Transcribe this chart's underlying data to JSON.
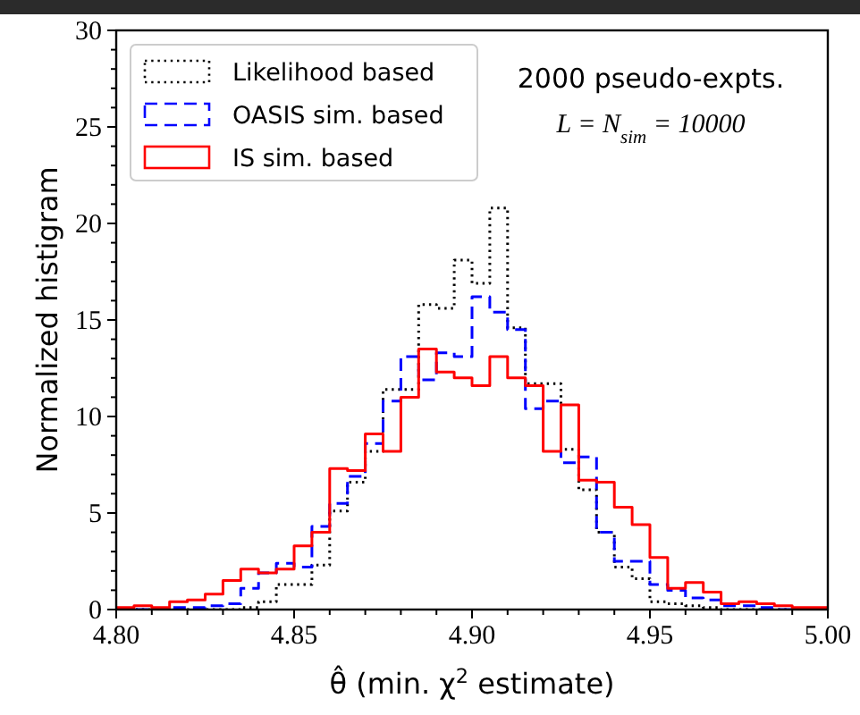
{
  "chart_data": {
    "type": "histogram",
    "xlabel": "θ̂ (min. χ$^{2}$ estimate)",
    "ylabel": "Normalized histigram",
    "annotations": [
      "2000 pseudo-expts.",
      "L = N$_{sim}$ = 10000"
    ],
    "bins": [
      4.8,
      4.805,
      4.81,
      4.815,
      4.82,
      4.825,
      4.83,
      4.835,
      4.84,
      4.845,
      4.85,
      4.855,
      4.86,
      4.865,
      4.87,
      4.875,
      4.88,
      4.885,
      4.89,
      4.895,
      4.9,
      4.905,
      4.91,
      4.915,
      4.92,
      4.925,
      4.93,
      4.935,
      4.94,
      4.945,
      4.95,
      4.955,
      4.96,
      4.965,
      4.97,
      4.975,
      4.98,
      4.985,
      4.99,
      4.995,
      5.0
    ],
    "series": [
      {
        "name": "Likelihood based",
        "color": "#000000",
        "line_style": "dotted",
        "values": [
          0,
          0,
          0,
          0,
          0,
          0,
          0,
          0.1,
          0.4,
          1.3,
          1.3,
          2.3,
          5.1,
          6.6,
          8.2,
          11.4,
          11.4,
          15.8,
          15.6,
          18.1,
          16.9,
          20.8,
          14.6,
          11.7,
          11.7,
          8.3,
          6.2,
          4.0,
          2.2,
          1.6,
          0.4,
          0.3,
          0.2,
          0.1,
          0,
          0,
          0,
          0,
          0,
          0
        ]
      },
      {
        "name": "OASIS sim. based",
        "color": "#0000ff",
        "line_style": "dashed",
        "values": [
          0,
          0,
          0,
          0.1,
          0.1,
          0.2,
          0.3,
          1.1,
          1.9,
          2.4,
          2.2,
          4.3,
          5.5,
          6.9,
          8.6,
          10.8,
          13.1,
          11.9,
          13.3,
          13.1,
          16.2,
          15.4,
          14.5,
          10.4,
          10.8,
          7.6,
          7.9,
          4.0,
          2.5,
          2.5,
          1.3,
          1.0,
          0.6,
          0.5,
          0.2,
          0.2,
          0.1,
          0,
          0,
          0
        ]
      },
      {
        "name": "IS sim. based",
        "color": "#ff0000",
        "line_style": "solid",
        "values": [
          0.1,
          0.2,
          0.1,
          0.4,
          0.5,
          0.8,
          1.5,
          2.1,
          1.9,
          2.1,
          3.3,
          4.0,
          7.3,
          7.2,
          9.1,
          8.2,
          11.0,
          13.5,
          12.3,
          12.0,
          11.6,
          13.1,
          12.0,
          11.6,
          8.2,
          10.6,
          6.7,
          6.6,
          5.3,
          4.4,
          2.7,
          1.1,
          1.4,
          0.9,
          0.3,
          0.4,
          0.3,
          0.2,
          0.1,
          0.1
        ]
      }
    ],
    "xlim": [
      4.8,
      5.0
    ],
    "xticks": [
      {
        "value": 4.8,
        "label": "4.80"
      },
      {
        "value": 4.81,
        "label": null
      },
      {
        "value": 4.82,
        "label": null
      },
      {
        "value": 4.83,
        "label": null
      },
      {
        "value": 4.84,
        "label": null
      },
      {
        "value": 4.85,
        "label": "4.85"
      },
      {
        "value": 4.86,
        "label": null
      },
      {
        "value": 4.87,
        "label": null
      },
      {
        "value": 4.88,
        "label": null
      },
      {
        "value": 4.89,
        "label": null
      },
      {
        "value": 4.9,
        "label": "4.90"
      },
      {
        "value": 4.91,
        "label": null
      },
      {
        "value": 4.92,
        "label": null
      },
      {
        "value": 4.93,
        "label": null
      },
      {
        "value": 4.94,
        "label": null
      },
      {
        "value": 4.95,
        "label": "4.95"
      },
      {
        "value": 4.96,
        "label": null
      },
      {
        "value": 4.97,
        "label": null
      },
      {
        "value": 4.98,
        "label": null
      },
      {
        "value": 4.99,
        "label": null
      },
      {
        "value": 5.0,
        "label": "5.00"
      }
    ],
    "ylim": [
      0,
      30
    ],
    "yticks": [
      0,
      {
        "value": 1,
        "label": null
      },
      {
        "value": 2,
        "label": null
      },
      {
        "value": 3,
        "label": null
      },
      {
        "value": 4,
        "label": null
      },
      5,
      {
        "value": 6,
        "label": null
      },
      {
        "value": 7,
        "label": null
      },
      {
        "value": 8,
        "label": null
      },
      {
        "value": 9,
        "label": null
      },
      10,
      {
        "value": 11,
        "label": null
      },
      {
        "value": 12,
        "label": null
      },
      {
        "value": 13,
        "label": null
      },
      {
        "value": 14,
        "label": null
      },
      15,
      {
        "value": 16,
        "label": null
      },
      {
        "value": 17,
        "label": null
      },
      {
        "value": 18,
        "label": null
      },
      {
        "value": 19,
        "label": null
      },
      20,
      {
        "value": 21,
        "label": null
      },
      {
        "value": 22,
        "label": null
      },
      {
        "value": 23,
        "label": null
      },
      {
        "value": 24,
        "label": null
      },
      25,
      {
        "value": 26,
        "label": null
      },
      {
        "value": 27,
        "label": null
      },
      {
        "value": 28,
        "label": null
      },
      {
        "value": 29,
        "label": null
      },
      30
    ],
    "legend": "top left",
    "grid": false
  }
}
